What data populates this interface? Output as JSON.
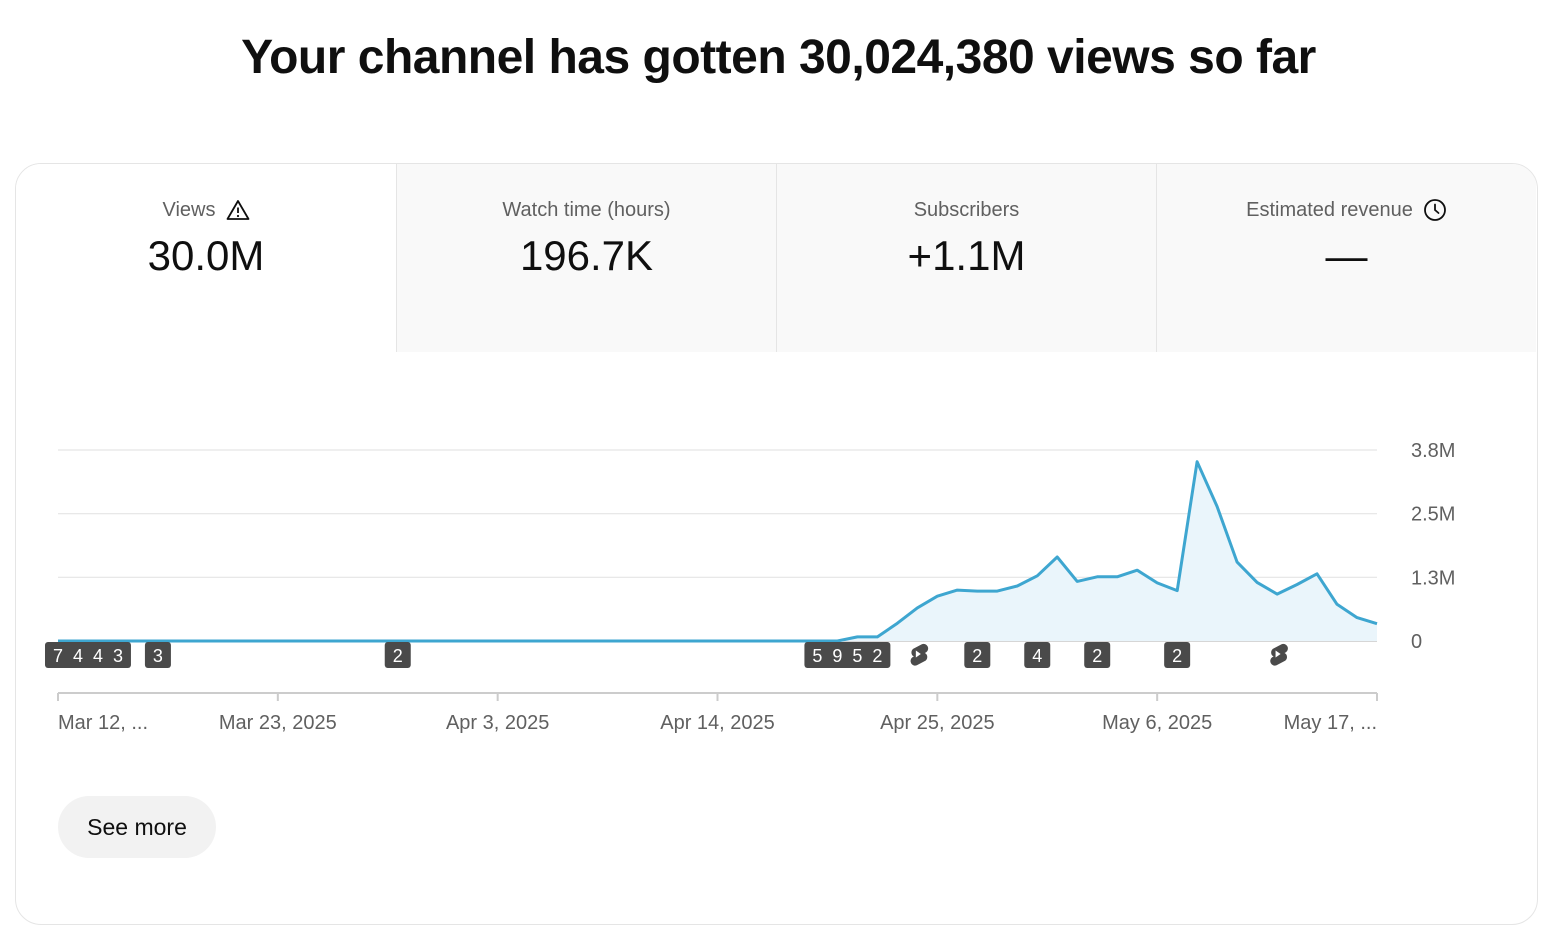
{
  "headline": "Your channel has gotten 30,024,380 views so far",
  "tabs": [
    {
      "label": "Views",
      "value": "30.0M",
      "icon": "warning-icon",
      "active": true
    },
    {
      "label": "Watch time (hours)",
      "value": "196.7K",
      "icon": "",
      "active": false
    },
    {
      "label": "Subscribers",
      "value": "+1.1M",
      "icon": "",
      "active": false
    },
    {
      "label": "Estimated revenue",
      "value": "—",
      "icon": "clock-icon",
      "active": false
    }
  ],
  "see_more_label": "See more",
  "colors": {
    "line": "#3ea6d0",
    "fill": "#eaf5fb",
    "marker_bg": "#4a4a4a",
    "grid": "#e5e5e5",
    "axis": "#cccccc"
  },
  "chart_data": {
    "type": "area",
    "x_start": "Mar 12, 2025",
    "x_end": "May 17, 2025",
    "x_tick_labels": [
      "Mar 12, ...",
      "Mar 23, 2025",
      "Apr 3, 2025",
      "Apr 14, 2025",
      "Apr 25, 2025",
      "May 6, 2025",
      "May 17, ..."
    ],
    "y_tick_labels": [
      "0",
      "1.3M",
      "2.5M",
      "3.8M"
    ],
    "y_ticks": [
      0,
      1250000,
      2500000,
      3750000
    ],
    "ylim": [
      0,
      3750000
    ],
    "series": [
      {
        "points": [
          {
            "x": "Mar 12, 2025",
            "y": 0
          },
          {
            "x": "Apr 20, 2025",
            "y": 0
          },
          {
            "x": "Apr 21, 2025",
            "y": 80000
          },
          {
            "x": "Apr 22, 2025",
            "y": 80000
          },
          {
            "x": "Apr 23, 2025",
            "y": 350000
          },
          {
            "x": "Apr 24, 2025",
            "y": 650000
          },
          {
            "x": "Apr 25, 2025",
            "y": 880000
          },
          {
            "x": "Apr 26, 2025",
            "y": 1000000
          },
          {
            "x": "Apr 27, 2025",
            "y": 980000
          },
          {
            "x": "Apr 28, 2025",
            "y": 980000
          },
          {
            "x": "Apr 29, 2025",
            "y": 1080000
          },
          {
            "x": "Apr 30, 2025",
            "y": 1280000
          },
          {
            "x": "May 1, 2025",
            "y": 1650000
          },
          {
            "x": "May 2, 2025",
            "y": 1170000
          },
          {
            "x": "May 3, 2025",
            "y": 1260000
          },
          {
            "x": "May 4, 2025",
            "y": 1260000
          },
          {
            "x": "May 5, 2025",
            "y": 1390000
          },
          {
            "x": "May 6, 2025",
            "y": 1140000
          },
          {
            "x": "May 7, 2025",
            "y": 990000
          },
          {
            "x": "May 8, 2025",
            "y": 3520000
          },
          {
            "x": "May 9, 2025",
            "y": 2640000
          },
          {
            "x": "May 10, 2025",
            "y": 1550000
          },
          {
            "x": "May 11, 2025",
            "y": 1150000
          },
          {
            "x": "May 12, 2025",
            "y": 920000
          },
          {
            "x": "May 13, 2025",
            "y": 1110000
          },
          {
            "x": "May 14, 2025",
            "y": 1320000
          },
          {
            "x": "May 15, 2025",
            "y": 720000
          },
          {
            "x": "May 16, 2025",
            "y": 460000
          },
          {
            "x": "May 17, 2025",
            "y": 340000
          }
        ]
      }
    ],
    "markers": [
      {
        "x": "Mar 12, 2025",
        "label": "7"
      },
      {
        "x": "Mar 13, 2025",
        "label": "4"
      },
      {
        "x": "Mar 14, 2025",
        "label": "4"
      },
      {
        "x": "Mar 15, 2025",
        "label": "3"
      },
      {
        "x": "Mar 17, 2025",
        "label": "3"
      },
      {
        "x": "Mar 29, 2025",
        "label": "2"
      },
      {
        "x": "Apr 19, 2025",
        "label": "5"
      },
      {
        "x": "Apr 20, 2025",
        "label": "9"
      },
      {
        "x": "Apr 21, 2025",
        "label": "5"
      },
      {
        "x": "Apr 22, 2025",
        "label": "2"
      },
      {
        "x": "Apr 24, 2025",
        "label": "",
        "icon": "shorts-icon"
      },
      {
        "x": "Apr 27, 2025",
        "label": "2"
      },
      {
        "x": "Apr 30, 2025",
        "label": "4"
      },
      {
        "x": "May 3, 2025",
        "label": "2"
      },
      {
        "x": "May 7, 2025",
        "label": "2"
      },
      {
        "x": "May 12, 2025",
        "label": "",
        "icon": "shorts-icon"
      }
    ]
  }
}
